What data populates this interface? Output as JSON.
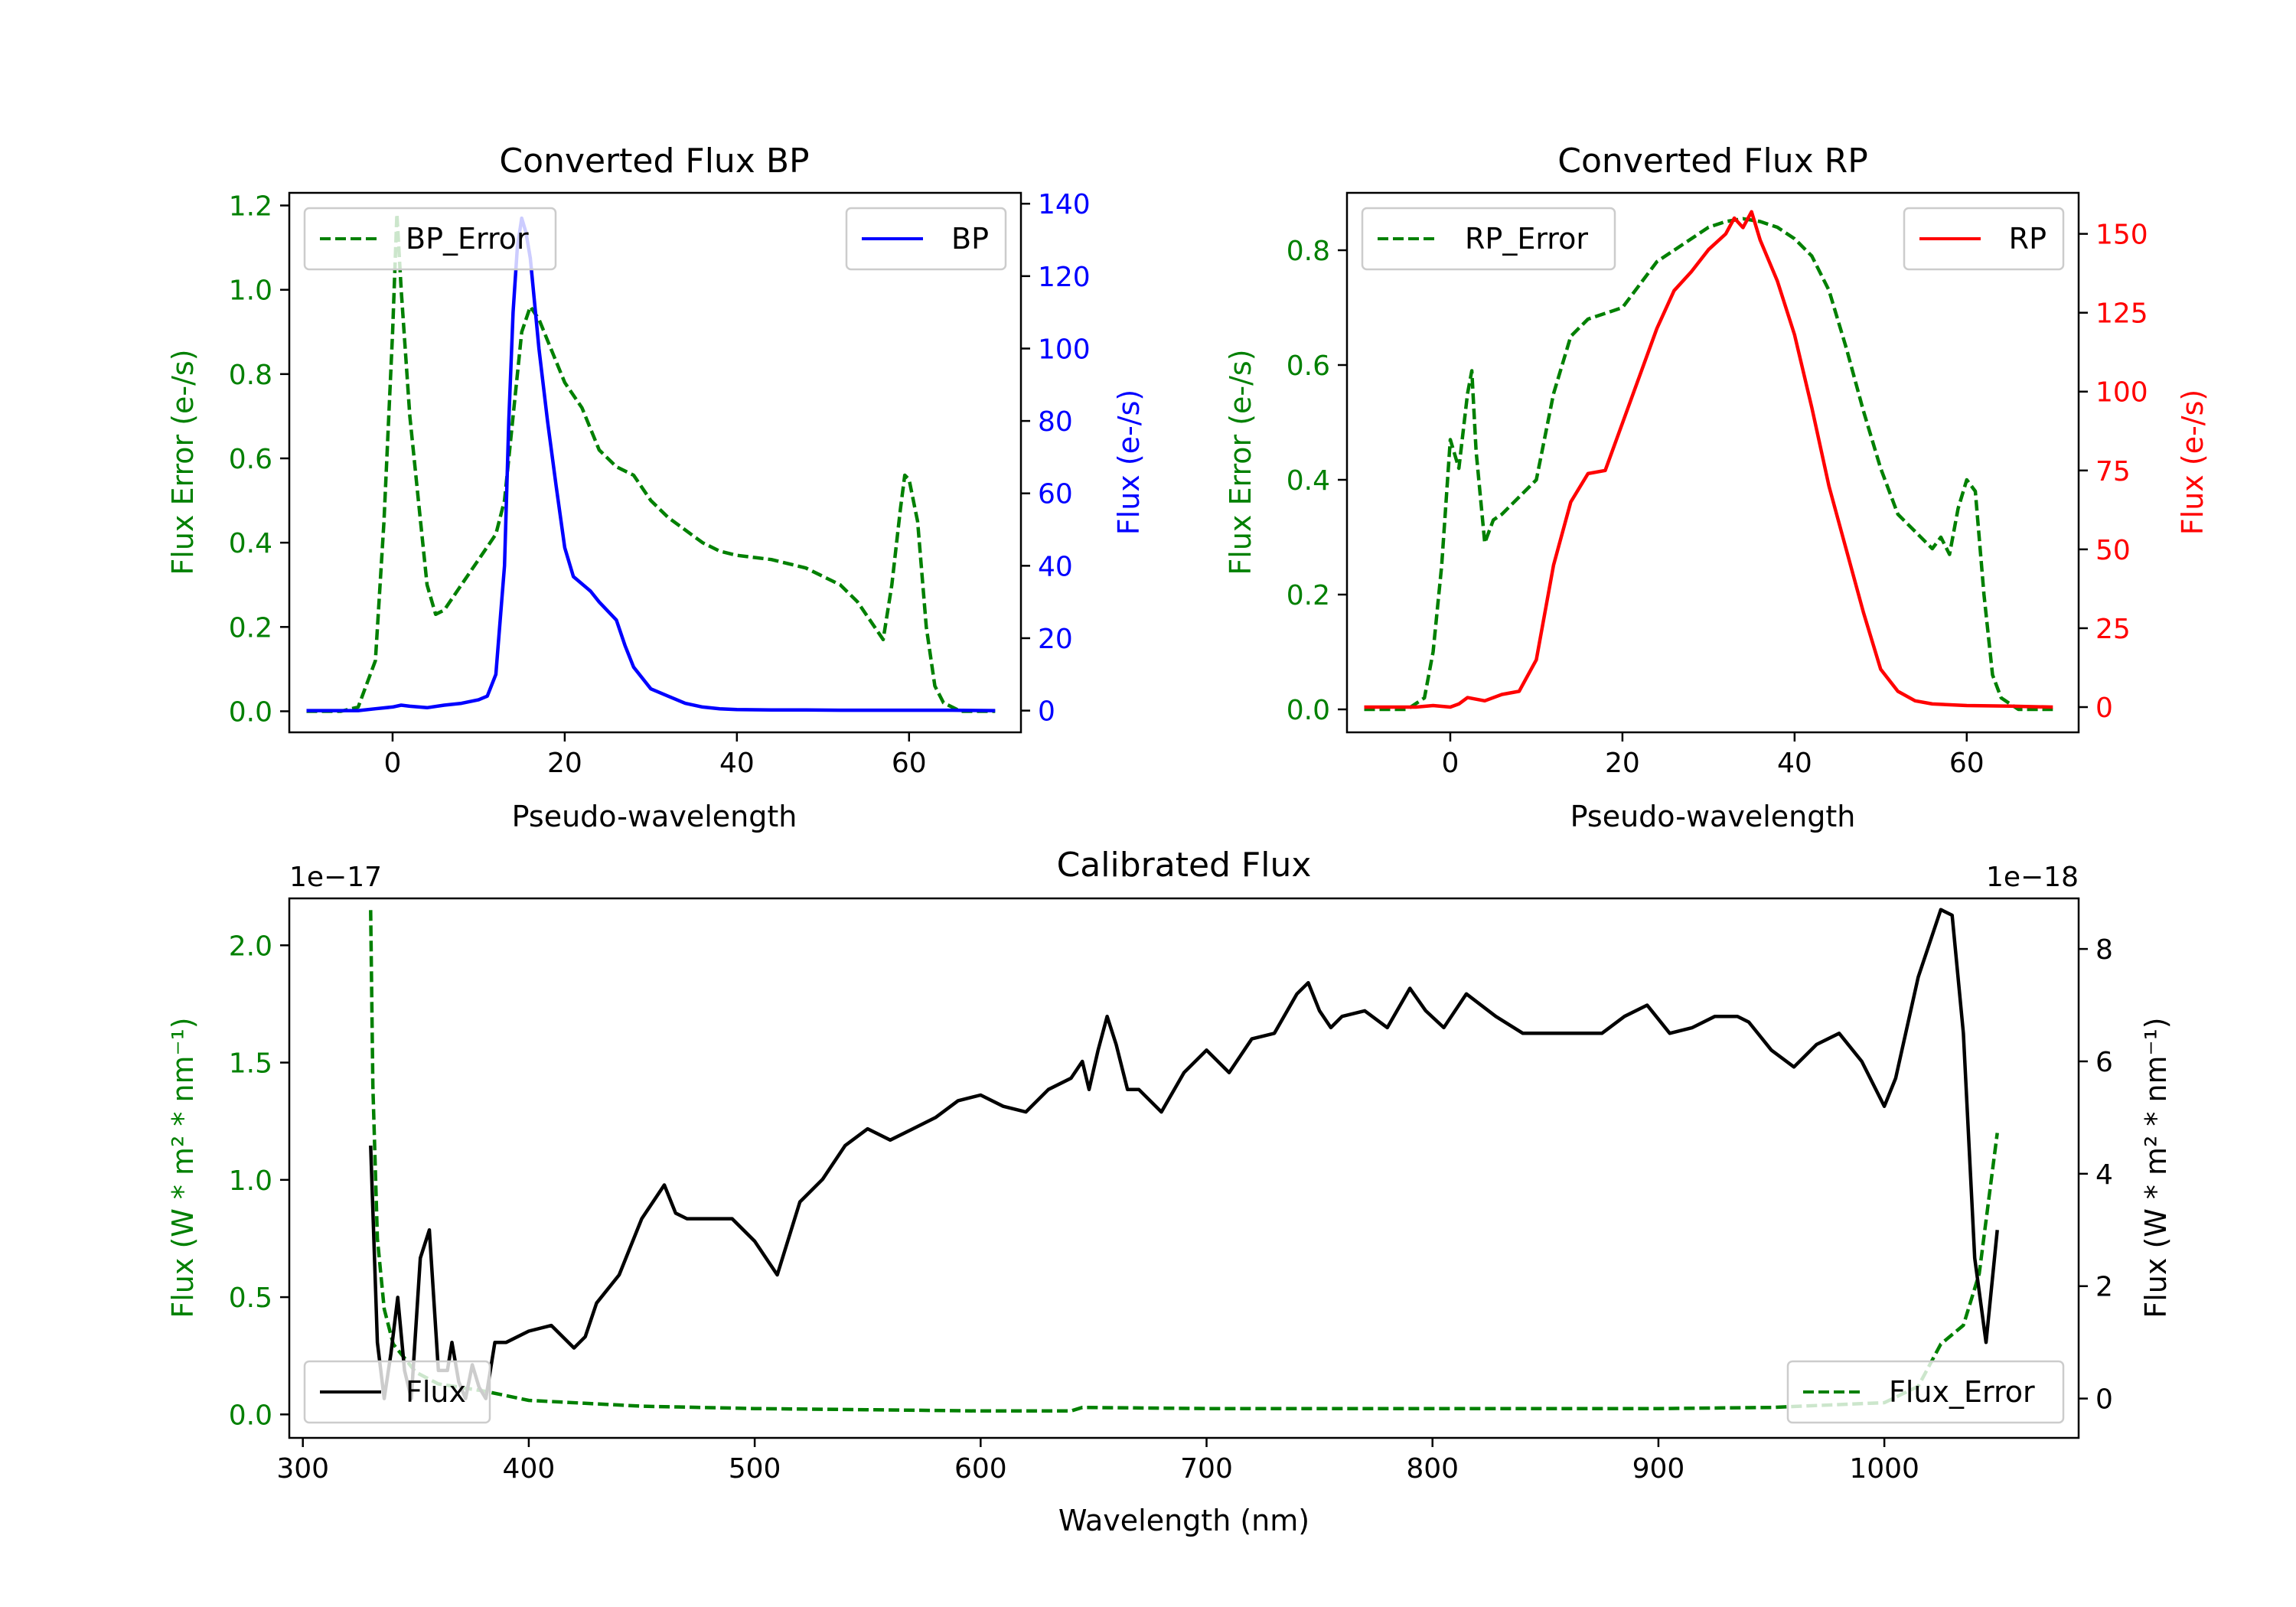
{
  "chart_data": [
    {
      "type": "line",
      "title": "Converted Flux BP",
      "xlabel": "Pseudo-wavelength",
      "xlim": [
        -12,
        73
      ],
      "xticks": [
        0,
        20,
        40,
        60
      ],
      "y_left": {
        "label": "Flux Error (e-/s)",
        "color": "#008000",
        "lim": [
          -0.05,
          1.23
        ],
        "ticks": [
          0.0,
          0.2,
          0.4,
          0.6,
          0.8,
          1.0,
          1.2
        ],
        "tick_labels": [
          "0.0",
          "0.2",
          "0.4",
          "0.6",
          "0.8",
          "1.0",
          "1.2"
        ]
      },
      "y_right": {
        "label": "Flux (e-/s)",
        "color": "#0000ff",
        "lim": [
          -6,
          143
        ],
        "ticks": [
          0,
          20,
          40,
          60,
          80,
          100,
          120,
          140
        ],
        "tick_labels": [
          "0",
          "20",
          "40",
          "60",
          "80",
          "100",
          "120",
          "140"
        ]
      },
      "series": [
        {
          "name": "BP_Error",
          "axis": "left",
          "style": "dashed",
          "color": "#008000",
          "x": [
            -10,
            -6,
            -4,
            -2,
            -1,
            0,
            0.5,
            1,
            2,
            3,
            4,
            5,
            6,
            8,
            10,
            12,
            13,
            14,
            15,
            16,
            17,
            18,
            20,
            22,
            24,
            26,
            28,
            30,
            32,
            34,
            36,
            38,
            40,
            44,
            48,
            52,
            54,
            56,
            57,
            58,
            59,
            59.5,
            60,
            61,
            62,
            63,
            64,
            66,
            68,
            70
          ],
          "values": [
            0.0,
            0.0,
            0.01,
            0.12,
            0.45,
            0.9,
            1.18,
            1.0,
            0.7,
            0.5,
            0.3,
            0.23,
            0.24,
            0.3,
            0.36,
            0.42,
            0.5,
            0.7,
            0.9,
            0.96,
            0.93,
            0.88,
            0.78,
            0.72,
            0.62,
            0.58,
            0.56,
            0.5,
            0.46,
            0.43,
            0.4,
            0.38,
            0.37,
            0.36,
            0.34,
            0.3,
            0.26,
            0.2,
            0.17,
            0.3,
            0.48,
            0.56,
            0.55,
            0.45,
            0.2,
            0.06,
            0.02,
            0.0,
            0.0,
            0.0
          ]
        },
        {
          "name": "BP",
          "axis": "right",
          "style": "solid",
          "color": "#0000ff",
          "x": [
            -10,
            -4,
            -2,
            0,
            1,
            2,
            4,
            6,
            8,
            10,
            11,
            12,
            13,
            13.5,
            14,
            14.5,
            15,
            15.5,
            16,
            17,
            18,
            19,
            20,
            21,
            22,
            23,
            24,
            26,
            27,
            28,
            30,
            32,
            34,
            36,
            38,
            40,
            44,
            48,
            52,
            56,
            60,
            65,
            70
          ],
          "values": [
            0,
            0,
            0.5,
            1,
            1.5,
            1.2,
            0.8,
            1.5,
            2,
            3,
            4,
            10,
            40,
            80,
            110,
            128,
            136,
            132,
            125,
            100,
            80,
            62,
            45,
            37,
            35,
            33,
            30,
            25,
            18,
            12,
            6,
            4,
            2,
            1,
            0.5,
            0.3,
            0.2,
            0.2,
            0.1,
            0.1,
            0.1,
            0.1,
            0
          ]
        }
      ],
      "legend": [
        {
          "label": "BP_Error",
          "position": "top-left"
        },
        {
          "label": "BP",
          "position": "top-right"
        }
      ]
    },
    {
      "type": "line",
      "title": "Converted Flux RP",
      "xlabel": "Pseudo-wavelength",
      "xlim": [
        -12,
        73
      ],
      "xticks": [
        0,
        20,
        40,
        60
      ],
      "y_left": {
        "label": "Flux Error (e-/s)",
        "color": "#008000",
        "lim": [
          -0.04,
          0.9
        ],
        "ticks": [
          0.0,
          0.2,
          0.4,
          0.6,
          0.8
        ],
        "tick_labels": [
          "0.0",
          "0.2",
          "0.4",
          "0.6",
          "0.8"
        ]
      },
      "y_right": {
        "label": "Flux (e-/s)",
        "color": "#ff0000",
        "lim": [
          -8,
          163
        ],
        "ticks": [
          0,
          25,
          50,
          75,
          100,
          125,
          150
        ],
        "tick_labels": [
          "0",
          "25",
          "50",
          "75",
          "100",
          "125",
          "150"
        ]
      },
      "series": [
        {
          "name": "RP_Error",
          "axis": "left",
          "style": "dashed",
          "color": "#008000",
          "x": [
            -10,
            -5,
            -3,
            -2,
            -1,
            0,
            1,
            2,
            2.5,
            3,
            4,
            5,
            6,
            8,
            10,
            12,
            14,
            16,
            18,
            20,
            22,
            24,
            26,
            28,
            30,
            32,
            34,
            36,
            38,
            40,
            42,
            44,
            46,
            48,
            50,
            52,
            54,
            56,
            57,
            58,
            59,
            60,
            61,
            62,
            63,
            64,
            66,
            70
          ],
          "values": [
            0.0,
            0.0,
            0.02,
            0.1,
            0.25,
            0.47,
            0.42,
            0.55,
            0.59,
            0.45,
            0.29,
            0.33,
            0.34,
            0.37,
            0.4,
            0.55,
            0.65,
            0.68,
            0.69,
            0.7,
            0.74,
            0.78,
            0.8,
            0.82,
            0.84,
            0.85,
            0.855,
            0.85,
            0.84,
            0.82,
            0.79,
            0.73,
            0.63,
            0.52,
            0.42,
            0.34,
            0.31,
            0.28,
            0.3,
            0.27,
            0.35,
            0.4,
            0.38,
            0.2,
            0.06,
            0.02,
            0.0,
            0.0
          ]
        },
        {
          "name": "RP",
          "axis": "right",
          "style": "solid",
          "color": "#ff0000",
          "x": [
            -10,
            -4,
            -2,
            0,
            1,
            2,
            4,
            6,
            8,
            10,
            12,
            14,
            16,
            18,
            20,
            22,
            24,
            26,
            28,
            30,
            32,
            33,
            34,
            35,
            36,
            38,
            40,
            42,
            44,
            46,
            48,
            50,
            52,
            54,
            56,
            60,
            65,
            70
          ],
          "values": [
            0,
            0,
            0.5,
            0,
            1,
            3,
            2,
            4,
            5,
            15,
            45,
            65,
            74,
            75,
            90,
            105,
            120,
            132,
            138,
            145,
            150,
            155,
            152,
            157,
            148,
            135,
            118,
            95,
            70,
            50,
            30,
            12,
            5,
            2,
            1,
            0.5,
            0.3,
            0
          ]
        }
      ],
      "legend": [
        {
          "label": "RP_Error",
          "position": "top-left"
        },
        {
          "label": "RP",
          "position": "top-right"
        }
      ]
    },
    {
      "type": "line",
      "title": "Calibrated Flux",
      "xlabel": "Wavelength (nm)",
      "xlim": [
        294,
        1086
      ],
      "xticks": [
        300,
        400,
        500,
        600,
        700,
        800,
        900,
        1000
      ],
      "y_left": {
        "label": "Flux (W * m² * nm⁻¹)",
        "color": "#008000",
        "lim": [
          -0.1,
          2.2
        ],
        "ticks": [
          0.0,
          0.5,
          1.0,
          1.5,
          2.0
        ],
        "tick_labels": [
          "0.0",
          "0.5",
          "1.0",
          "1.5",
          "2.0"
        ],
        "offset_text": "1e−17"
      },
      "y_right": {
        "label": "Flux (W * m² * nm⁻¹)",
        "color": "#000000",
        "lim": [
          -0.7,
          8.9
        ],
        "ticks": [
          0,
          2,
          4,
          6,
          8
        ],
        "tick_labels": [
          "0",
          "2",
          "4",
          "6",
          "8"
        ],
        "offset_text": "1e−18"
      },
      "series": [
        {
          "name": "Flux_Error",
          "axis": "left",
          "style": "dashed",
          "color": "#008000",
          "x": [
            330,
            331,
            333,
            336,
            340,
            350,
            360,
            380,
            400,
            450,
            500,
            550,
            600,
            640,
            645,
            700,
            800,
            900,
            950,
            1000,
            1015,
            1025,
            1035,
            1042,
            1050
          ],
          "values": [
            2.15,
            1.4,
            0.75,
            0.45,
            0.3,
            0.18,
            0.13,
            0.1,
            0.06,
            0.035,
            0.025,
            0.02,
            0.015,
            0.015,
            0.03,
            0.025,
            0.025,
            0.025,
            0.03,
            0.05,
            0.12,
            0.3,
            0.38,
            0.6,
            1.2
          ]
        },
        {
          "name": "Flux",
          "axis": "right",
          "style": "solid",
          "color": "#000000",
          "x": [
            330,
            333,
            336,
            339,
            342,
            345,
            348,
            352,
            356,
            360,
            364,
            366,
            369,
            372,
            375,
            378,
            381,
            385,
            390,
            400,
            410,
            420,
            425,
            430,
            440,
            450,
            460,
            465,
            470,
            480,
            490,
            500,
            510,
            520,
            530,
            540,
            550,
            560,
            570,
            580,
            590,
            600,
            610,
            620,
            630,
            640,
            645,
            648,
            652,
            656,
            660,
            665,
            670,
            680,
            690,
            700,
            710,
            720,
            730,
            740,
            745,
            750,
            755,
            760,
            770,
            780,
            790,
            797,
            805,
            815,
            828,
            840,
            850,
            860,
            875,
            885,
            895,
            905,
            915,
            925,
            935,
            940,
            950,
            960,
            970,
            980,
            990,
            1000,
            1005,
            1015,
            1025,
            1030,
            1035,
            1040,
            1045,
            1050
          ],
          "values": [
            4.5,
            1.0,
            0.0,
            0.8,
            1.8,
            0.5,
            0.0,
            2.5,
            3.0,
            0.5,
            0.5,
            1.0,
            0.3,
            0.0,
            0.6,
            0.2,
            0.0,
            1.0,
            1.0,
            1.2,
            1.3,
            0.9,
            1.1,
            1.7,
            2.2,
            3.2,
            3.8,
            3.3,
            3.2,
            3.2,
            3.2,
            2.8,
            2.2,
            3.5,
            3.9,
            4.5,
            4.8,
            4.6,
            4.8,
            5.0,
            5.3,
            5.4,
            5.2,
            5.1,
            5.5,
            5.7,
            6.0,
            5.5,
            6.2,
            6.8,
            6.3,
            5.5,
            5.5,
            5.1,
            5.8,
            6.2,
            5.8,
            6.4,
            6.5,
            7.2,
            7.4,
            6.9,
            6.6,
            6.8,
            6.9,
            6.6,
            7.3,
            6.9,
            6.6,
            7.2,
            6.8,
            6.5,
            6.5,
            6.5,
            6.5,
            6.8,
            7.0,
            6.5,
            6.6,
            6.8,
            6.8,
            6.7,
            6.2,
            5.9,
            6.3,
            6.5,
            6.0,
            5.2,
            5.7,
            7.5,
            8.7,
            8.6,
            6.5,
            2.5,
            1.0,
            3.0
          ]
        }
      ],
      "legend": [
        {
          "label": "Flux",
          "position": "bottom-left"
        },
        {
          "label": "Flux_Error",
          "position": "bottom-right"
        }
      ]
    }
  ]
}
